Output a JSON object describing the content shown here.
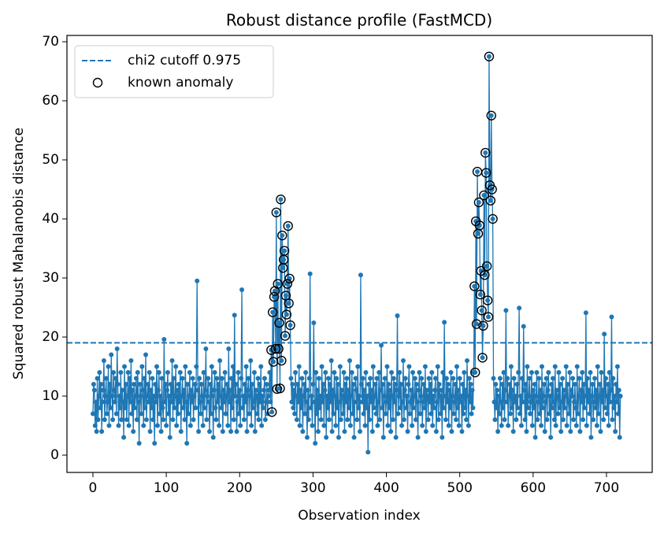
{
  "chart_data": {
    "type": "line",
    "title": "Robust distance profile (FastMCD)",
    "xlabel": "Observation index",
    "ylabel": "Squared robust Mahalanobis distance",
    "xlim": [
      -35.4,
      762.3
    ],
    "ylim": [
      -2.93,
      71.07
    ],
    "xticks": [
      0,
      100,
      200,
      300,
      400,
      500,
      600,
      700
    ],
    "yticks": [
      0,
      10,
      20,
      30,
      40,
      50,
      60,
      70
    ],
    "legend": "upper left",
    "hlines": [
      {
        "name": "chi2 cutoff 0.975",
        "value": 19.02,
        "color": "#1f77b4",
        "style": "dashed"
      }
    ],
    "series": [
      {
        "color": "#1f77b4",
        "values": [
          7,
          12,
          11,
          5,
          9,
          4,
          13,
          6,
          10,
          14,
          8,
          12,
          4,
          9,
          11,
          16,
          6,
          10,
          13,
          7,
          9,
          15,
          5,
          12,
          8,
          17,
          10,
          6,
          14,
          11,
          9,
          13,
          7,
          18,
          12,
          5,
          10,
          8,
          14,
          6,
          11,
          9,
          3,
          15,
          8,
          12,
          6,
          10,
          14,
          5,
          13,
          9,
          16,
          7,
          11,
          4,
          12,
          8,
          10,
          13,
          6,
          14,
          9,
          2,
          12,
          10,
          7,
          15,
          11,
          5,
          13,
          8,
          17,
          6,
          10,
          12,
          9,
          14,
          4,
          11,
          8,
          13,
          6,
          10,
          2,
          12,
          9,
          15,
          5,
          11,
          14,
          7,
          10,
          4,
          13,
          8,
          6,
          19.6,
          9,
          12,
          5,
          11,
          14,
          7,
          10,
          3,
          12,
          9,
          16,
          6,
          13,
          8,
          10,
          15,
          5,
          11,
          7,
          12,
          9,
          14,
          4,
          10,
          13,
          8,
          11,
          6,
          15,
          9,
          2,
          12,
          7,
          10,
          14,
          5,
          11,
          9,
          13,
          6,
          10,
          12,
          8,
          15,
          29.5,
          11,
          4,
          13,
          9,
          7,
          12,
          10,
          5,
          14,
          8,
          11,
          18,
          6,
          10,
          13,
          9,
          4,
          12,
          7,
          15,
          10,
          3,
          11,
          14,
          8,
          6,
          13,
          9,
          12,
          5,
          16,
          10,
          8,
          13,
          4,
          11,
          9,
          14,
          7,
          10,
          12,
          5,
          18,
          9,
          11,
          4,
          13,
          8,
          15,
          6,
          23.7,
          10,
          12,
          4,
          9,
          14,
          7,
          11,
          5,
          13,
          28,
          8,
          10,
          6,
          12,
          9,
          15,
          4,
          11,
          13,
          7,
          10,
          16,
          5,
          12,
          8,
          9,
          14,
          4,
          11,
          10,
          7,
          13,
          6,
          12,
          9,
          15,
          5,
          10,
          8,
          11,
          13,
          6,
          9,
          12,
          7,
          10,
          11,
          14,
          9,
          17.8,
          7.3,
          24.2,
          15.8,
          26.8,
          27.8,
          18,
          41.1,
          11.2,
          29,
          18,
          22.4,
          11.3,
          43.3,
          16,
          37.2,
          31.7,
          33.1,
          34.6,
          20.2,
          27,
          23.8,
          29,
          38.8,
          25.7,
          29.9,
          22,
          13,
          9,
          12,
          8,
          11,
          7,
          14,
          10,
          6,
          12,
          9,
          15,
          5,
          11,
          8,
          13,
          4,
          10,
          12,
          7,
          14,
          9,
          3,
          11,
          6,
          13,
          30.7,
          8,
          10,
          5,
          12,
          22.4,
          9,
          2,
          14,
          7,
          11,
          4,
          13,
          8,
          10,
          6,
          15,
          9,
          12,
          5,
          11,
          14,
          3,
          10,
          8,
          13,
          6,
          12,
          9,
          16,
          4,
          11,
          7,
          14,
          10,
          5,
          13,
          8,
          12,
          3,
          9,
          15,
          6,
          11,
          10,
          7,
          14,
          4,
          12,
          9,
          13,
          6,
          11,
          8,
          16,
          5,
          10,
          14,
          7,
          12,
          3,
          9,
          13,
          11,
          6,
          15,
          8,
          10,
          4,
          30.5,
          12,
          9,
          13,
          7,
          11,
          5,
          14,
          8,
          10,
          0.5,
          12,
          6,
          13,
          9,
          11,
          4,
          15,
          8,
          10,
          12,
          7,
          13,
          5,
          9,
          14,
          6,
          11,
          18.6,
          8,
          12,
          3,
          10,
          13,
          7,
          9,
          15,
          5,
          12,
          8,
          11,
          4,
          14,
          10,
          6,
          13,
          9,
          12,
          3,
          11,
          23.6,
          7,
          10,
          14,
          8,
          12,
          5,
          9,
          16,
          6,
          11,
          13,
          8,
          10,
          4,
          12,
          15,
          7,
          9,
          11,
          5,
          14,
          8,
          10,
          13,
          6,
          12,
          9,
          3,
          11,
          14,
          7,
          10,
          13,
          5,
          9,
          12,
          8,
          15,
          4,
          11,
          10,
          6,
          13,
          9,
          12,
          7,
          14,
          5,
          10,
          8,
          11,
          13,
          4,
          9,
          15,
          6,
          12,
          10,
          7,
          11,
          3,
          14,
          8,
          22.5,
          10,
          6,
          13,
          9,
          12,
          5,
          11,
          8,
          14,
          4,
          10,
          13,
          7,
          9,
          12,
          6,
          15,
          8,
          11,
          5,
          13,
          9,
          10,
          4,
          12,
          7,
          14,
          8,
          11,
          6,
          16,
          10,
          5,
          13,
          9,
          12,
          7,
          11,
          8,
          14,
          28.6,
          14,
          39.6,
          22.2,
          48,
          37.5,
          42.8,
          38.9,
          27.2,
          31.2,
          24.5,
          16.5,
          21.9,
          44,
          30.5,
          51.2,
          47.8,
          32,
          26.2,
          23.4,
          67.5,
          45.7,
          43.1,
          57.5,
          45,
          40,
          13,
          9,
          6,
          12,
          8,
          11,
          4,
          10,
          7,
          13,
          9,
          5,
          12,
          8,
          14,
          6,
          11,
          24.5,
          9,
          13,
          5,
          10,
          12,
          7,
          15,
          8,
          11,
          4,
          13,
          9,
          10,
          6,
          12,
          8,
          14,
          24.9,
          7,
          10,
          5,
          13,
          9,
          21.8,
          11,
          6,
          12,
          4,
          15,
          8,
          10,
          13,
          7,
          9,
          14,
          5,
          11,
          8,
          12,
          3,
          10,
          14,
          6,
          9,
          13,
          7,
          11,
          5,
          15,
          8,
          10,
          12,
          4,
          9,
          13,
          6,
          11,
          14,
          7,
          10,
          3,
          12,
          8,
          13,
          9,
          6,
          15,
          5,
          11,
          10,
          7,
          14,
          8,
          12,
          4,
          9,
          13,
          6,
          11,
          8,
          10,
          15,
          5,
          12,
          9,
          7,
          14,
          4,
          11,
          10,
          13,
          6,
          9,
          12,
          8,
          5,
          15,
          7,
          10,
          13,
          4,
          11,
          9,
          14,
          6,
          12,
          8,
          10,
          24.1,
          5,
          13,
          9,
          11,
          7,
          14,
          3,
          10,
          12,
          6,
          9,
          13,
          8,
          11,
          5,
          15,
          7,
          10,
          12,
          4,
          14,
          9,
          11,
          6,
          20.5,
          8,
          13,
          10,
          7,
          12,
          5,
          14,
          9,
          11,
          23.4,
          6,
          13,
          8,
          10,
          4,
          12,
          9,
          15,
          7,
          11,
          3,
          10
        ]
      },
      {
        "name": "known anomaly",
        "type": "scatter",
        "color": "#000000",
        "x": [
          243,
          244,
          245,
          246,
          247,
          248,
          249,
          250,
          251,
          252,
          253,
          254,
          255,
          256,
          257,
          258,
          259,
          260,
          261,
          262,
          263,
          264,
          265,
          266,
          267,
          268,
          269,
          520,
          521,
          522,
          523,
          524,
          525,
          526,
          527,
          528,
          529,
          530,
          531,
          532,
          533,
          534,
          535,
          536,
          537,
          538,
          539,
          540,
          541,
          542,
          543,
          544,
          545
        ],
        "values": [
          17.8,
          7.3,
          24.2,
          15.8,
          26.8,
          27.8,
          18,
          41.1,
          11.2,
          29,
          18,
          22.4,
          11.3,
          43.3,
          16,
          37.2,
          31.7,
          33.1,
          34.6,
          20.2,
          27,
          23.8,
          29,
          38.8,
          25.7,
          29.9,
          22,
          28.6,
          14,
          39.6,
          22.2,
          48,
          37.5,
          42.8,
          38.9,
          27.2,
          31.2,
          24.5,
          16.5,
          21.9,
          44,
          30.5,
          51.2,
          47.8,
          32,
          26.2,
          23.4,
          67.5,
          45.7,
          43.1,
          57.5,
          45,
          40
        ]
      }
    ]
  }
}
